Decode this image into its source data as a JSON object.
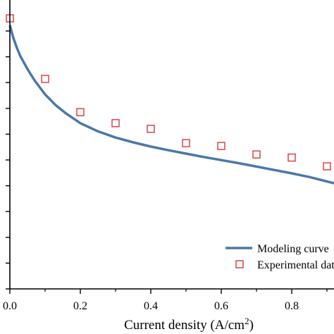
{
  "chart_data": {
    "type": "line",
    "xlabel": "Current density (A/cm",
    "xlabel_sup": "2",
    "xlabel_tail": ")",
    "xlim": [
      0,
      0.92
    ],
    "ylim": [
      0,
      1
    ],
    "x_ticks": [
      0.0,
      0.2,
      0.4,
      0.6,
      0.8
    ],
    "x_tick_labels": [
      "0.0",
      "0.2",
      "0.4",
      "0.6",
      "0.8"
    ],
    "y_tick_count": 11,
    "grid": false,
    "legend_position": "bottom-right",
    "series": [
      {
        "name": "Modeling curve",
        "kind": "line",
        "color": "#4a78a8",
        "x": [
          0.0,
          0.01,
          0.02,
          0.03,
          0.05,
          0.07,
          0.1,
          0.13,
          0.16,
          0.2,
          0.25,
          0.3,
          0.35,
          0.4,
          0.45,
          0.5,
          0.55,
          0.6,
          0.65,
          0.7,
          0.75,
          0.8,
          0.85,
          0.92
        ],
        "y": [
          0.935,
          0.89,
          0.855,
          0.825,
          0.78,
          0.74,
          0.69,
          0.652,
          0.622,
          0.588,
          0.559,
          0.537,
          0.52,
          0.505,
          0.492,
          0.48,
          0.468,
          0.457,
          0.446,
          0.434,
          0.422,
          0.41,
          0.397,
          0.375
        ]
      },
      {
        "name": "Experimental data",
        "kind": "scatter",
        "color": "#d9363a",
        "x": [
          0.0,
          0.1,
          0.2,
          0.3,
          0.4,
          0.5,
          0.6,
          0.7,
          0.8,
          0.9
        ],
        "y": [
          0.96,
          0.745,
          0.627,
          0.588,
          0.568,
          0.517,
          0.507,
          0.477,
          0.466,
          0.435
        ]
      }
    ],
    "legend": {
      "line_label": "Modeling curve",
      "marker_label": "Experimental data"
    }
  }
}
